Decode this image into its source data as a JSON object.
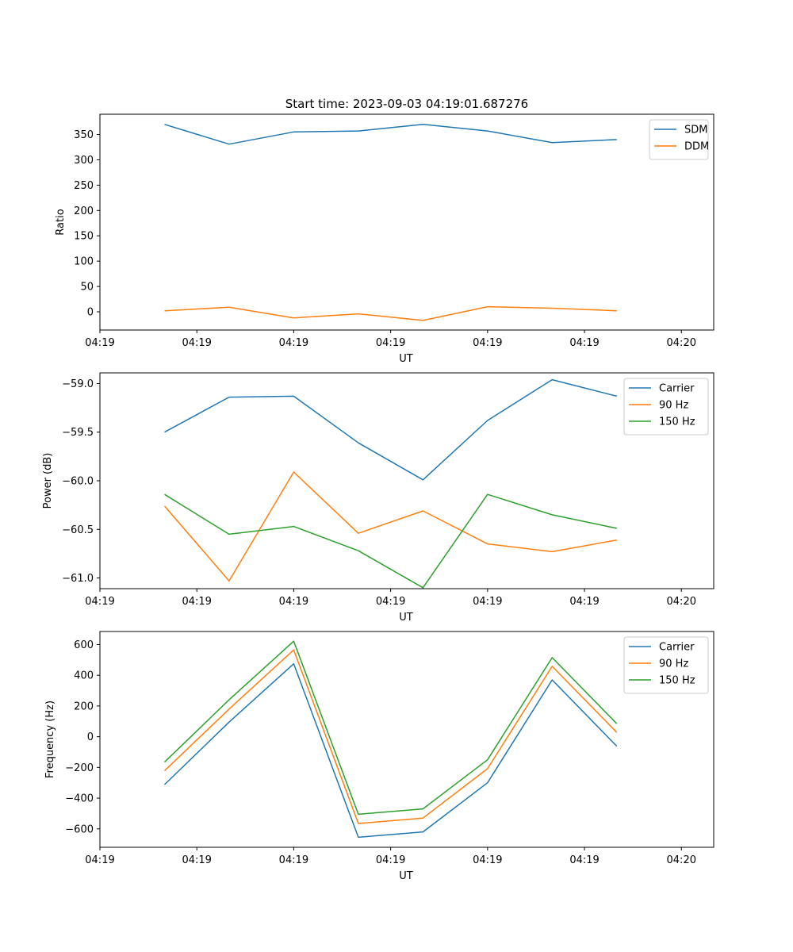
{
  "figure": {
    "title": "Start time: 2023-09-03 04:19:01.687276"
  },
  "colors": {
    "blue": "#1f77b4",
    "orange": "#ff7f0e",
    "green": "#2ca02c"
  },
  "chart_data": [
    {
      "type": "line",
      "title": "Start time: 2023-09-03 04:19:01.687276",
      "xlabel": "UT",
      "ylabel": "Ratio",
      "x": [
        1,
        2,
        3,
        4,
        5,
        6,
        7,
        8
      ],
      "xlim": [
        0,
        9.5
      ],
      "xticks": [
        {
          "v": 0,
          "label": "04:19"
        },
        {
          "v": 1.5,
          "label": "04:19"
        },
        {
          "v": 3,
          "label": "04:19"
        },
        {
          "v": 4.5,
          "label": "04:19"
        },
        {
          "v": 6,
          "label": "04:19"
        },
        {
          "v": 7.5,
          "label": "04:19"
        },
        {
          "v": 9,
          "label": "04:20"
        }
      ],
      "ylim": [
        -36,
        390
      ],
      "yticks": [
        {
          "v": 0,
          "label": "0"
        },
        {
          "v": 50,
          "label": "50"
        },
        {
          "v": 100,
          "label": "100"
        },
        {
          "v": 150,
          "label": "150"
        },
        {
          "v": 200,
          "label": "200"
        },
        {
          "v": 250,
          "label": "250"
        },
        {
          "v": 300,
          "label": "300"
        },
        {
          "v": 350,
          "label": "350"
        }
      ],
      "legend": "top-right",
      "series": [
        {
          "name": "SDM",
          "color": "#1f77b4",
          "values": [
            370,
            331,
            355,
            357,
            370,
            357,
            334,
            340
          ]
        },
        {
          "name": "DDM",
          "color": "#ff7f0e",
          "values": [
            2,
            9,
            -12,
            -4,
            -17,
            10,
            7,
            2
          ]
        }
      ]
    },
    {
      "type": "line",
      "title": "",
      "xlabel": "UT",
      "ylabel": "Power (dB)",
      "x": [
        1,
        2,
        3,
        4,
        5,
        6,
        7,
        8
      ],
      "xlim": [
        0,
        9.5
      ],
      "xticks": [
        {
          "v": 0,
          "label": "04:19"
        },
        {
          "v": 1.5,
          "label": "04:19"
        },
        {
          "v": 3,
          "label": "04:19"
        },
        {
          "v": 4.5,
          "label": "04:19"
        },
        {
          "v": 6,
          "label": "04:19"
        },
        {
          "v": 7.5,
          "label": "04:19"
        },
        {
          "v": 9,
          "label": "04:20"
        }
      ],
      "ylim": [
        -61.11,
        -58.89
      ],
      "yticks": [
        {
          "v": -59.0,
          "label": "−59.0"
        },
        {
          "v": -59.5,
          "label": "−59.5"
        },
        {
          "v": -60.0,
          "label": "−60.0"
        },
        {
          "v": -60.5,
          "label": "−60.5"
        },
        {
          "v": -61.0,
          "label": "−61.0"
        }
      ],
      "legend": "top-right",
      "series": [
        {
          "name": "Carrier",
          "color": "#1f77b4",
          "values": [
            -59.5,
            -59.14,
            -59.13,
            -59.61,
            -59.99,
            -59.38,
            -58.96,
            -59.13
          ]
        },
        {
          "name": "90 Hz",
          "color": "#ff7f0e",
          "values": [
            -60.26,
            -61.03,
            -59.91,
            -60.54,
            -60.31,
            -60.65,
            -60.73,
            -60.61
          ]
        },
        {
          "name": "150 Hz",
          "color": "#2ca02c",
          "values": [
            -60.14,
            -60.55,
            -60.47,
            -60.72,
            -61.1,
            -60.14,
            -60.35,
            -60.49
          ]
        }
      ]
    },
    {
      "type": "line",
      "title": "",
      "xlabel": "UT",
      "ylabel": "Frequency (Hz)",
      "x": [
        1,
        2,
        3,
        4,
        5,
        6,
        7,
        8
      ],
      "xlim": [
        0,
        9.5
      ],
      "xticks": [
        {
          "v": 0,
          "label": "04:19"
        },
        {
          "v": 1.5,
          "label": "04:19"
        },
        {
          "v": 3,
          "label": "04:19"
        },
        {
          "v": 4.5,
          "label": "04:19"
        },
        {
          "v": 6,
          "label": "04:19"
        },
        {
          "v": 7.5,
          "label": "04:19"
        },
        {
          "v": 9,
          "label": "04:20"
        }
      ],
      "ylim": [
        -720,
        685
      ],
      "yticks": [
        {
          "v": 600,
          "label": "600"
        },
        {
          "v": 400,
          "label": "400"
        },
        {
          "v": 200,
          "label": "200"
        },
        {
          "v": 0,
          "label": "0"
        },
        {
          "v": -200,
          "label": "−200"
        },
        {
          "v": -400,
          "label": "−400"
        },
        {
          "v": -600,
          "label": "−600"
        }
      ],
      "legend": "top-right",
      "series": [
        {
          "name": "Carrier",
          "color": "#1f77b4",
          "values": [
            -312,
            95,
            475,
            -655,
            -620,
            -300,
            370,
            -62
          ]
        },
        {
          "name": "90 Hz",
          "color": "#ff7f0e",
          "values": [
            -222,
            180,
            565,
            -565,
            -530,
            -208,
            458,
            28
          ]
        },
        {
          "name": "150 Hz",
          "color": "#2ca02c",
          "values": [
            -165,
            240,
            622,
            -505,
            -470,
            -150,
            515,
            85
          ]
        }
      ]
    }
  ]
}
